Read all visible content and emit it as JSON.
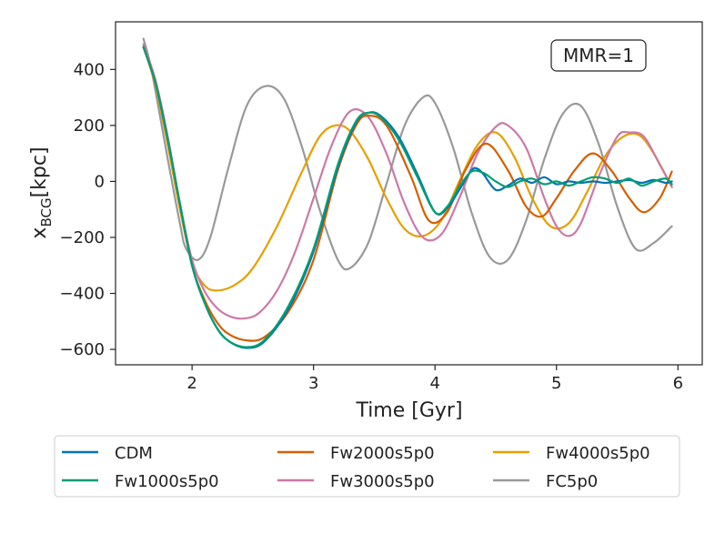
{
  "chart_data": {
    "type": "line",
    "title": "",
    "xlabel": "Time [Gyr]",
    "ylabel_main": "x",
    "ylabel_sub": "BCG",
    "ylabel_unit": "[kpc]",
    "xlim": [
      1.37,
      6.2
    ],
    "ylim": [
      -655,
      570
    ],
    "xticks": [
      2,
      3,
      4,
      5,
      6
    ],
    "yticks": [
      -600,
      -400,
      -200,
      0,
      200,
      400
    ],
    "xtick_labels": [
      "2",
      "3",
      "4",
      "5",
      "6"
    ],
    "ytick_labels": [
      "−600",
      "−400",
      "−200",
      "0",
      "200",
      "400"
    ],
    "annotation": "MMR=1",
    "legend_position": "below",
    "series": [
      {
        "name": "CDM",
        "color": "#0072B2",
        "t": [
          1.6,
          1.7,
          1.8,
          1.9,
          2.0,
          2.1,
          2.2,
          2.3,
          2.45,
          2.6,
          2.8,
          3.0,
          3.2,
          3.35,
          3.45,
          3.55,
          3.7,
          3.85,
          4.0,
          4.1,
          4.2,
          4.3,
          4.35,
          4.4,
          4.5,
          4.6,
          4.7,
          4.8,
          4.9,
          5.0,
          5.1,
          5.2,
          5.3,
          5.4,
          5.5,
          5.6,
          5.7,
          5.8,
          5.9,
          5.95
        ],
        "x": [
          480,
          350,
          150,
          -80,
          -300,
          -430,
          -520,
          -570,
          -595,
          -570,
          -450,
          -250,
          50,
          210,
          245,
          235,
          160,
          30,
          -110,
          -95,
          -30,
          40,
          45,
          25,
          -30,
          -15,
          10,
          -5,
          15,
          -10,
          0,
          -5,
          0,
          -5,
          0,
          5,
          -5,
          5,
          -5,
          0
        ]
      },
      {
        "name": "Fw1000s5p0",
        "color": "#009E73",
        "t": [
          1.6,
          1.7,
          1.8,
          1.9,
          2.0,
          2.1,
          2.2,
          2.3,
          2.45,
          2.6,
          2.8,
          3.0,
          3.2,
          3.35,
          3.45,
          3.55,
          3.7,
          3.85,
          4.0,
          4.1,
          4.2,
          4.3,
          4.4,
          4.5,
          4.6,
          4.7,
          4.8,
          4.9,
          5.0,
          5.1,
          5.2,
          5.3,
          5.4,
          5.5,
          5.6,
          5.7,
          5.8,
          5.9,
          5.95
        ],
        "x": [
          480,
          350,
          150,
          -80,
          -300,
          -430,
          -520,
          -570,
          -592,
          -565,
          -440,
          -240,
          60,
          215,
          245,
          230,
          150,
          20,
          -110,
          -90,
          -20,
          35,
          30,
          0,
          -20,
          0,
          10,
          -10,
          0,
          -15,
          0,
          15,
          10,
          -5,
          10,
          -15,
          0,
          10,
          -10
        ]
      },
      {
        "name": "Fw2000s5p0",
        "color": "#D55E00",
        "t": [
          1.6,
          1.7,
          1.8,
          1.9,
          2.0,
          2.1,
          2.2,
          2.3,
          2.45,
          2.6,
          2.8,
          3.0,
          3.2,
          3.35,
          3.45,
          3.6,
          3.8,
          3.95,
          4.1,
          4.25,
          4.42,
          4.6,
          4.75,
          4.88,
          5.0,
          5.15,
          5.3,
          5.45,
          5.6,
          5.72,
          5.85,
          5.95
        ],
        "x": [
          480,
          350,
          150,
          -80,
          -300,
          -420,
          -500,
          -545,
          -568,
          -555,
          -460,
          -280,
          40,
          200,
          235,
          200,
          20,
          -140,
          -110,
          40,
          135,
          40,
          -90,
          -125,
          -60,
          40,
          100,
          40,
          -60,
          -110,
          -60,
          35
        ]
      },
      {
        "name": "Fw3000s5p0",
        "color": "#CC79A7",
        "t": [
          1.6,
          1.7,
          1.8,
          1.9,
          2.0,
          2.1,
          2.2,
          2.3,
          2.42,
          2.55,
          2.7,
          2.85,
          3.0,
          3.15,
          3.3,
          3.45,
          3.6,
          3.75,
          3.9,
          4.05,
          4.2,
          4.35,
          4.5,
          4.6,
          4.75,
          4.9,
          5.0,
          5.1,
          5.2,
          5.35,
          5.5,
          5.6,
          5.72,
          5.85,
          5.95
        ],
        "x": [
          490,
          360,
          160,
          -80,
          -280,
          -390,
          -450,
          -480,
          -490,
          -470,
          -390,
          -250,
          -60,
          130,
          250,
          230,
          100,
          -80,
          -200,
          -190,
          -60,
          100,
          195,
          200,
          120,
          -60,
          -160,
          -195,
          -150,
          20,
          160,
          175,
          160,
          60,
          -20
        ]
      },
      {
        "name": "Fw4000s5p0",
        "color": "#E69F00",
        "t": [
          1.6,
          1.7,
          1.8,
          1.9,
          2.0,
          2.1,
          2.2,
          2.35,
          2.5,
          2.7,
          2.9,
          3.05,
          3.18,
          3.3,
          3.45,
          3.6,
          3.75,
          3.9,
          4.05,
          4.2,
          4.35,
          4.5,
          4.65,
          4.8,
          4.95,
          5.1,
          5.25,
          5.4,
          5.55,
          5.68,
          5.8,
          5.95
        ],
        "x": [
          480,
          340,
          130,
          -100,
          -290,
          -370,
          -390,
          -370,
          -310,
          -160,
          30,
          160,
          200,
          180,
          80,
          -60,
          -170,
          -195,
          -140,
          0,
          130,
          175,
          90,
          -60,
          -160,
          -150,
          -40,
          90,
          160,
          165,
          100,
          -20
        ]
      },
      {
        "name": "FC5p0",
        "color": "#999999",
        "t": [
          1.6,
          1.65,
          1.7,
          1.8,
          1.9,
          1.95,
          2.05,
          2.15,
          2.3,
          2.45,
          2.6,
          2.75,
          2.9,
          3.05,
          3.2,
          3.3,
          3.45,
          3.6,
          3.75,
          3.9,
          4.0,
          4.15,
          4.3,
          4.45,
          4.6,
          4.75,
          4.9,
          5.05,
          5.2,
          5.35,
          5.5,
          5.65,
          5.8,
          5.95
        ],
        "x": [
          510,
          430,
          320,
          80,
          -150,
          -240,
          -280,
          -200,
          50,
          270,
          340,
          300,
          130,
          -100,
          -280,
          -310,
          -220,
          -10,
          200,
          300,
          280,
          120,
          -110,
          -270,
          -280,
          -140,
          80,
          240,
          270,
          130,
          -90,
          -240,
          -220,
          -160
        ]
      }
    ]
  }
}
